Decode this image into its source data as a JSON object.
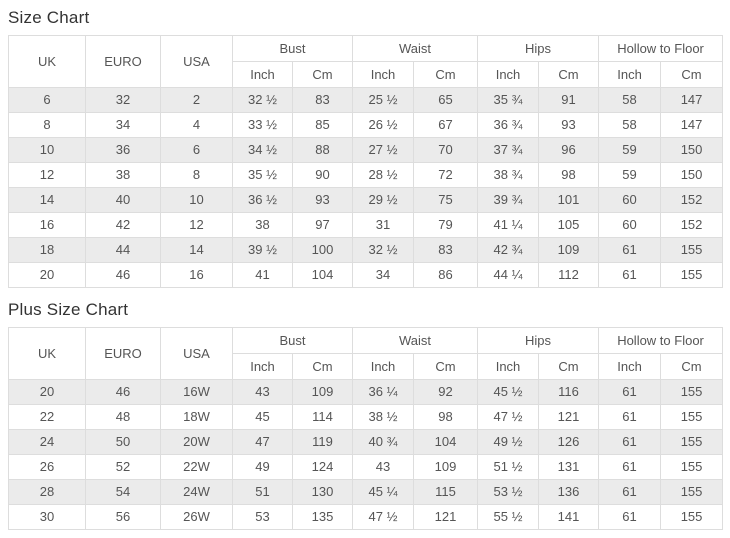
{
  "colors": {
    "stripe_background": "#ebebeb",
    "table_border": "#dddddd",
    "cell_text": "#555555",
    "title_text": "#333333",
    "page_background": "#ffffff"
  },
  "chart_data": [
    {
      "type": "table",
      "title": "Size Chart",
      "columns_simple": [
        "UK",
        "EURO",
        "USA"
      ],
      "column_groups": [
        "Bust",
        "Waist",
        "Hips",
        "Hollow to Floor"
      ],
      "subcolumns": [
        "Inch",
        "Cm"
      ],
      "rows": [
        [
          "6",
          "32",
          "2",
          "32 ½",
          "83",
          "25 ½",
          "65",
          "35 ¾",
          "91",
          "58",
          "147"
        ],
        [
          "8",
          "34",
          "4",
          "33 ½",
          "85",
          "26 ½",
          "67",
          "36 ¾",
          "93",
          "58",
          "147"
        ],
        [
          "10",
          "36",
          "6",
          "34 ½",
          "88",
          "27 ½",
          "70",
          "37 ¾",
          "96",
          "59",
          "150"
        ],
        [
          "12",
          "38",
          "8",
          "35 ½",
          "90",
          "28 ½",
          "72",
          "38 ¾",
          "98",
          "59",
          "150"
        ],
        [
          "14",
          "40",
          "10",
          "36 ½",
          "93",
          "29 ½",
          "75",
          "39 ¾",
          "101",
          "60",
          "152"
        ],
        [
          "16",
          "42",
          "12",
          "38",
          "97",
          "31",
          "79",
          "41 ¼",
          "105",
          "60",
          "152"
        ],
        [
          "18",
          "44",
          "14",
          "39 ½",
          "100",
          "32 ½",
          "83",
          "42 ¾",
          "109",
          "61",
          "155"
        ],
        [
          "20",
          "46",
          "16",
          "41",
          "104",
          "34",
          "86",
          "44 ¼",
          "112",
          "61",
          "155"
        ]
      ]
    },
    {
      "type": "table",
      "title": "Plus Size Chart",
      "columns_simple": [
        "UK",
        "EURO",
        "USA"
      ],
      "column_groups": [
        "Bust",
        "Waist",
        "Hips",
        "Hollow to Floor"
      ],
      "subcolumns": [
        "Inch",
        "Cm"
      ],
      "rows": [
        [
          "20",
          "46",
          "16W",
          "43",
          "109",
          "36 ¼",
          "92",
          "45 ½",
          "116",
          "61",
          "155"
        ],
        [
          "22",
          "48",
          "18W",
          "45",
          "114",
          "38 ½",
          "98",
          "47 ½",
          "121",
          "61",
          "155"
        ],
        [
          "24",
          "50",
          "20W",
          "47",
          "119",
          "40 ¾",
          "104",
          "49 ½",
          "126",
          "61",
          "155"
        ],
        [
          "26",
          "52",
          "22W",
          "49",
          "124",
          "43",
          "109",
          "51 ½",
          "131",
          "61",
          "155"
        ],
        [
          "28",
          "54",
          "24W",
          "51",
          "130",
          "45 ¼",
          "115",
          "53 ½",
          "136",
          "61",
          "155"
        ],
        [
          "30",
          "56",
          "26W",
          "53",
          "135",
          "47 ½",
          "121",
          "55 ½",
          "141",
          "61",
          "155"
        ]
      ]
    }
  ]
}
